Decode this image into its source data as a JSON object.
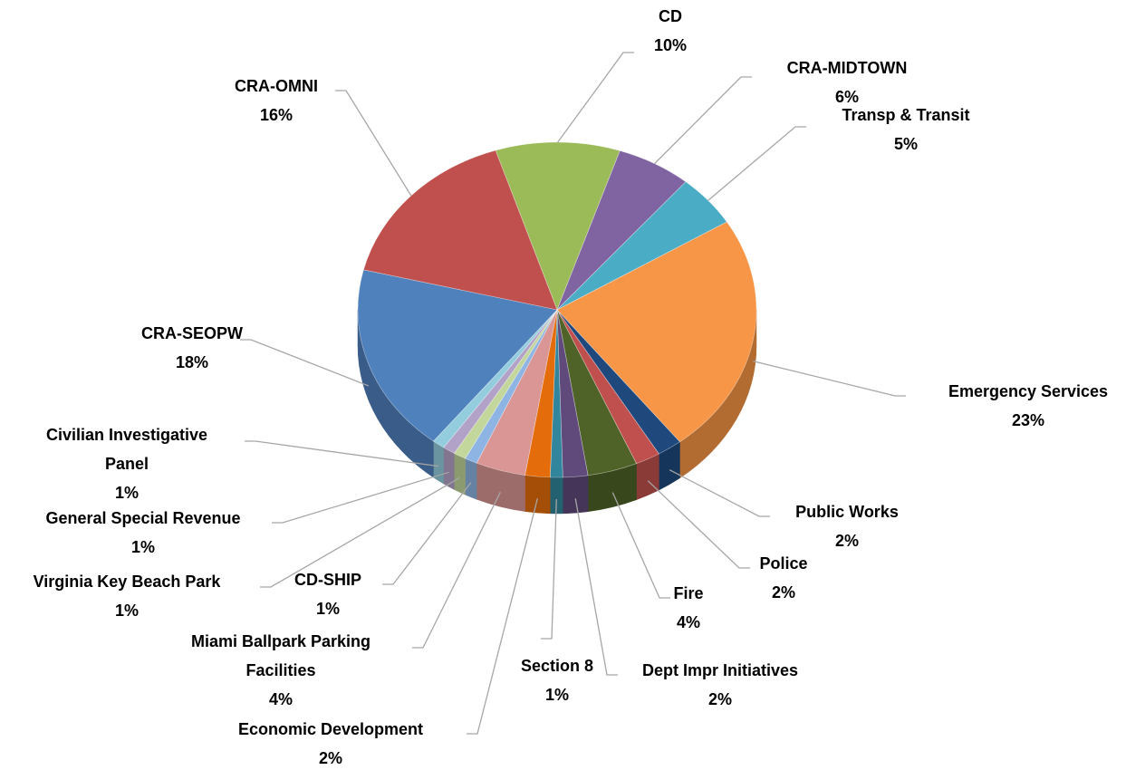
{
  "chart_data": {
    "type": "pie",
    "categories": [
      "CD",
      "CRA-MIDTOWN",
      "Transp & Transit",
      "Emergency Services",
      "Public Works",
      "Police",
      "Fire",
      "Dept Impr Initiatives",
      "Section 8",
      "Economic Development",
      "Miami Ballpark Parking Facilities",
      "CD-SHIP",
      "Virginia Key Beach Park",
      "General Special Revenue",
      "Civilian Investigative Panel",
      "CRA-SEOPW",
      "CRA-OMNI"
    ],
    "values": [
      10,
      6,
      5,
      23,
      2,
      2,
      4,
      2,
      1,
      2,
      4,
      1,
      1,
      1,
      1,
      18,
      16
    ],
    "value_labels": [
      "10%",
      "6%",
      "5%",
      "23%",
      "2%",
      "2%",
      "4%",
      "2%",
      "1%",
      "2%",
      "4%",
      "1%",
      "1%",
      "1%",
      "1%",
      "18%",
      "16%"
    ],
    "colors": [
      "#9bbb59",
      "#8064a2",
      "#4bacc6",
      "#f79646",
      "#1f497d",
      "#c0504d",
      "#4f6228",
      "#604a7b",
      "#31859c",
      "#e46c0a",
      "#d99694",
      "#8eb4e3",
      "#c3d69b",
      "#b3a2c7",
      "#93cddd",
      "#4f81bd",
      "#c0504d"
    ]
  }
}
